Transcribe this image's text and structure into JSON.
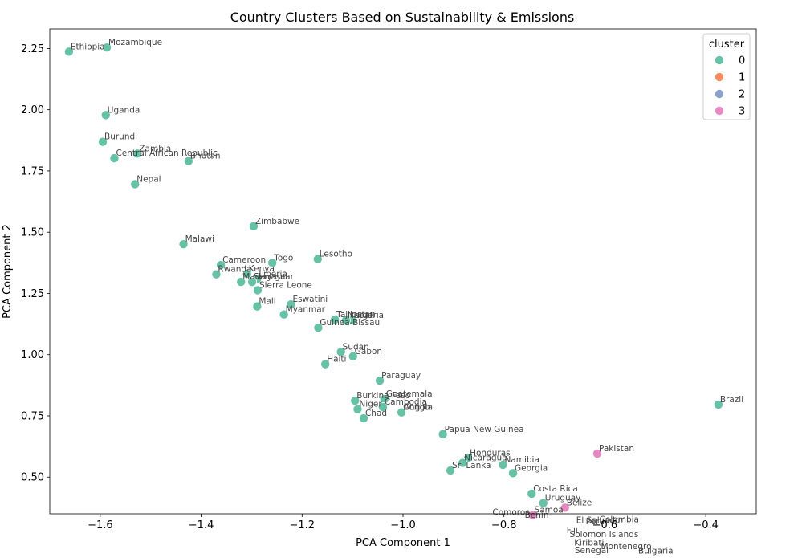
{
  "chart_data": {
    "type": "scatter",
    "title": "Country Clusters Based on Sustainability & Emissions",
    "xlabel": "PCA Component 1",
    "ylabel": "PCA Component 2",
    "xlim": [
      -1.7,
      -0.3
    ],
    "ylim": [
      0.35,
      2.33
    ],
    "xticks": [
      -1.6,
      -1.4,
      -1.2,
      -1.0,
      -0.8,
      -0.6,
      -0.4
    ],
    "xtick_labels": [
      "−1.6",
      "−1.4",
      "−1.2",
      "−1.0",
      "−0.8",
      "−0.6",
      "−0.4"
    ],
    "yticks": [
      0.5,
      0.75,
      1.0,
      1.25,
      1.5,
      1.75,
      2.0,
      2.25
    ],
    "ytick_labels": [
      "0.50",
      "0.75",
      "1.00",
      "1.25",
      "1.50",
      "1.75",
      "2.00",
      "2.25"
    ],
    "grid": false,
    "legend": {
      "title": "cluster",
      "placement": "top-right",
      "entries": [
        {
          "label": "0",
          "color": "#66c2a5"
        },
        {
          "label": "1",
          "color": "#fc8d62"
        },
        {
          "label": "2",
          "color": "#8da0cb"
        },
        {
          "label": "3",
          "color": "#e78ac3"
        }
      ]
    },
    "points": [
      {
        "label": "Ethiopia",
        "x": -1.662,
        "y": 2.237,
        "cluster": 0
      },
      {
        "label": "Mozambique",
        "x": -1.587,
        "y": 2.254,
        "cluster": 0
      },
      {
        "label": "Uganda",
        "x": -1.589,
        "y": 1.978,
        "cluster": 0
      },
      {
        "label": "Burundi",
        "x": -1.595,
        "y": 1.869,
        "cluster": 0
      },
      {
        "label": "Zambia",
        "x": -1.526,
        "y": 1.821,
        "cluster": 0
      },
      {
        "label": "Central African Republic",
        "x": -1.572,
        "y": 1.802,
        "cluster": 0
      },
      {
        "label": "Bhutan",
        "x": -1.425,
        "y": 1.79,
        "cluster": 0
      },
      {
        "label": "Nepal",
        "x": -1.531,
        "y": 1.696,
        "cluster": 0
      },
      {
        "label": "Zimbabwe",
        "x": -1.296,
        "y": 1.524,
        "cluster": 0
      },
      {
        "label": "Malawi",
        "x": -1.435,
        "y": 1.451,
        "cluster": 0
      },
      {
        "label": "Lesotho",
        "x": -1.169,
        "y": 1.39,
        "cluster": 0
      },
      {
        "label": "Togo",
        "x": -1.259,
        "y": 1.375,
        "cluster": 0
      },
      {
        "label": "Cameroon",
        "x": -1.361,
        "y": 1.366,
        "cluster": 0
      },
      {
        "label": "Kenya",
        "x": -1.309,
        "y": 1.33,
        "cluster": 0
      },
      {
        "label": "Rwanda",
        "x": -1.37,
        "y": 1.328,
        "cluster": 0
      },
      {
        "label": "Liberia",
        "x": -1.289,
        "y": 1.309,
        "cluster": 0
      },
      {
        "label": "Madagascar",
        "x": -1.321,
        "y": 1.297,
        "cluster": 0
      },
      {
        "label": "Senegal",
        "x": -1.299,
        "y": 1.297,
        "cluster": 0
      },
      {
        "label": "Sierra Leone",
        "x": -1.288,
        "y": 1.263,
        "cluster": 0
      },
      {
        "label": "Eswatini",
        "x": -1.222,
        "y": 1.205,
        "cluster": 0
      },
      {
        "label": "Mali",
        "x": -1.289,
        "y": 1.197,
        "cluster": 0
      },
      {
        "label": "Myanmar",
        "x": -1.236,
        "y": 1.164,
        "cluster": 0
      },
      {
        "label": "Tajikistan",
        "x": -1.135,
        "y": 1.143,
        "cluster": 0
      },
      {
        "label": "Nigeria",
        "x": -1.101,
        "y": 1.14,
        "cluster": 0
      },
      {
        "label": "Nepal",
        "x": -1.113,
        "y": 1.14,
        "cluster": 0
      },
      {
        "label": "Guinea-Bissau",
        "x": -1.168,
        "y": 1.11,
        "cluster": 0
      },
      {
        "label": "Sudan",
        "x": -1.123,
        "y": 1.011,
        "cluster": 0
      },
      {
        "label": "Gabon",
        "x": -1.099,
        "y": 0.993,
        "cluster": 0
      },
      {
        "label": "Haiti",
        "x": -1.154,
        "y": 0.961,
        "cluster": 0
      },
      {
        "label": "Paraguay",
        "x": -1.046,
        "y": 0.894,
        "cluster": 0
      },
      {
        "label": "Guatemala",
        "x": -1.037,
        "y": 0.818,
        "cluster": 0
      },
      {
        "label": "Burkina Faso",
        "x": -1.095,
        "y": 0.812,
        "cluster": 0
      },
      {
        "label": "Cambodia",
        "x": -1.04,
        "y": 0.786,
        "cluster": 0
      },
      {
        "label": "Niger",
        "x": -1.09,
        "y": 0.777,
        "cluster": 0
      },
      {
        "label": "Angola",
        "x": -1.002,
        "y": 0.764,
        "cluster": 0
      },
      {
        "label": "Congo",
        "x": -1.003,
        "y": 0.764,
        "cluster": 0
      },
      {
        "label": "Chad",
        "x": -1.078,
        "y": 0.74,
        "cluster": 0
      },
      {
        "label": "Brazil",
        "x": -0.375,
        "y": 0.796,
        "cluster": 0
      },
      {
        "label": "Papua New Guinea",
        "x": -0.921,
        "y": 0.675,
        "cluster": 0
      },
      {
        "label": "Honduras",
        "x": -0.871,
        "y": 0.578,
        "cluster": 0
      },
      {
        "label": "Nicaragua",
        "x": -0.882,
        "y": 0.558,
        "cluster": 0
      },
      {
        "label": "Namibia",
        "x": -0.802,
        "y": 0.55,
        "cluster": 0
      },
      {
        "label": "Sri Lanka",
        "x": -0.906,
        "y": 0.527,
        "cluster": 0
      },
      {
        "label": "Georgia",
        "x": -0.782,
        "y": 0.516,
        "cluster": 0
      },
      {
        "label": "Pakistan",
        "x": -0.615,
        "y": 0.596,
        "cluster": 3
      },
      {
        "label": "Costa Rica",
        "x": -0.745,
        "y": 0.432,
        "cluster": 0
      },
      {
        "label": "Uruguay",
        "x": -0.722,
        "y": 0.394,
        "cluster": 0
      },
      {
        "label": "Belize",
        "x": -0.679,
        "y": 0.375,
        "cluster": 3
      },
      {
        "label": "Samoa",
        "x": -0.743,
        "y": 0.345,
        "cluster": 3
      }
    ],
    "offscale_labels": [
      {
        "label": "Comoros",
        "x": -0.826,
        "y": 0.336
      },
      {
        "label": "Benin",
        "x": -0.762,
        "y": 0.323
      },
      {
        "label": "El Salvador",
        "x": -0.66,
        "y": 0.302
      },
      {
        "label": "Colombia",
        "x": -0.614,
        "y": 0.305
      },
      {
        "label": "Peru",
        "x": -0.641,
        "y": 0.298
      },
      {
        "label": "Fiji",
        "x": -0.679,
        "y": 0.262
      },
      {
        "label": "Solomon Islands",
        "x": -0.673,
        "y": 0.245
      },
      {
        "label": "Kiribati",
        "x": -0.664,
        "y": 0.21
      },
      {
        "label": "Montenegro",
        "x": -0.611,
        "y": 0.196
      },
      {
        "label": "Senegal",
        "x": -0.663,
        "y": 0.18
      },
      {
        "label": "Bulgaria",
        "x": -0.537,
        "y": 0.178
      }
    ]
  }
}
